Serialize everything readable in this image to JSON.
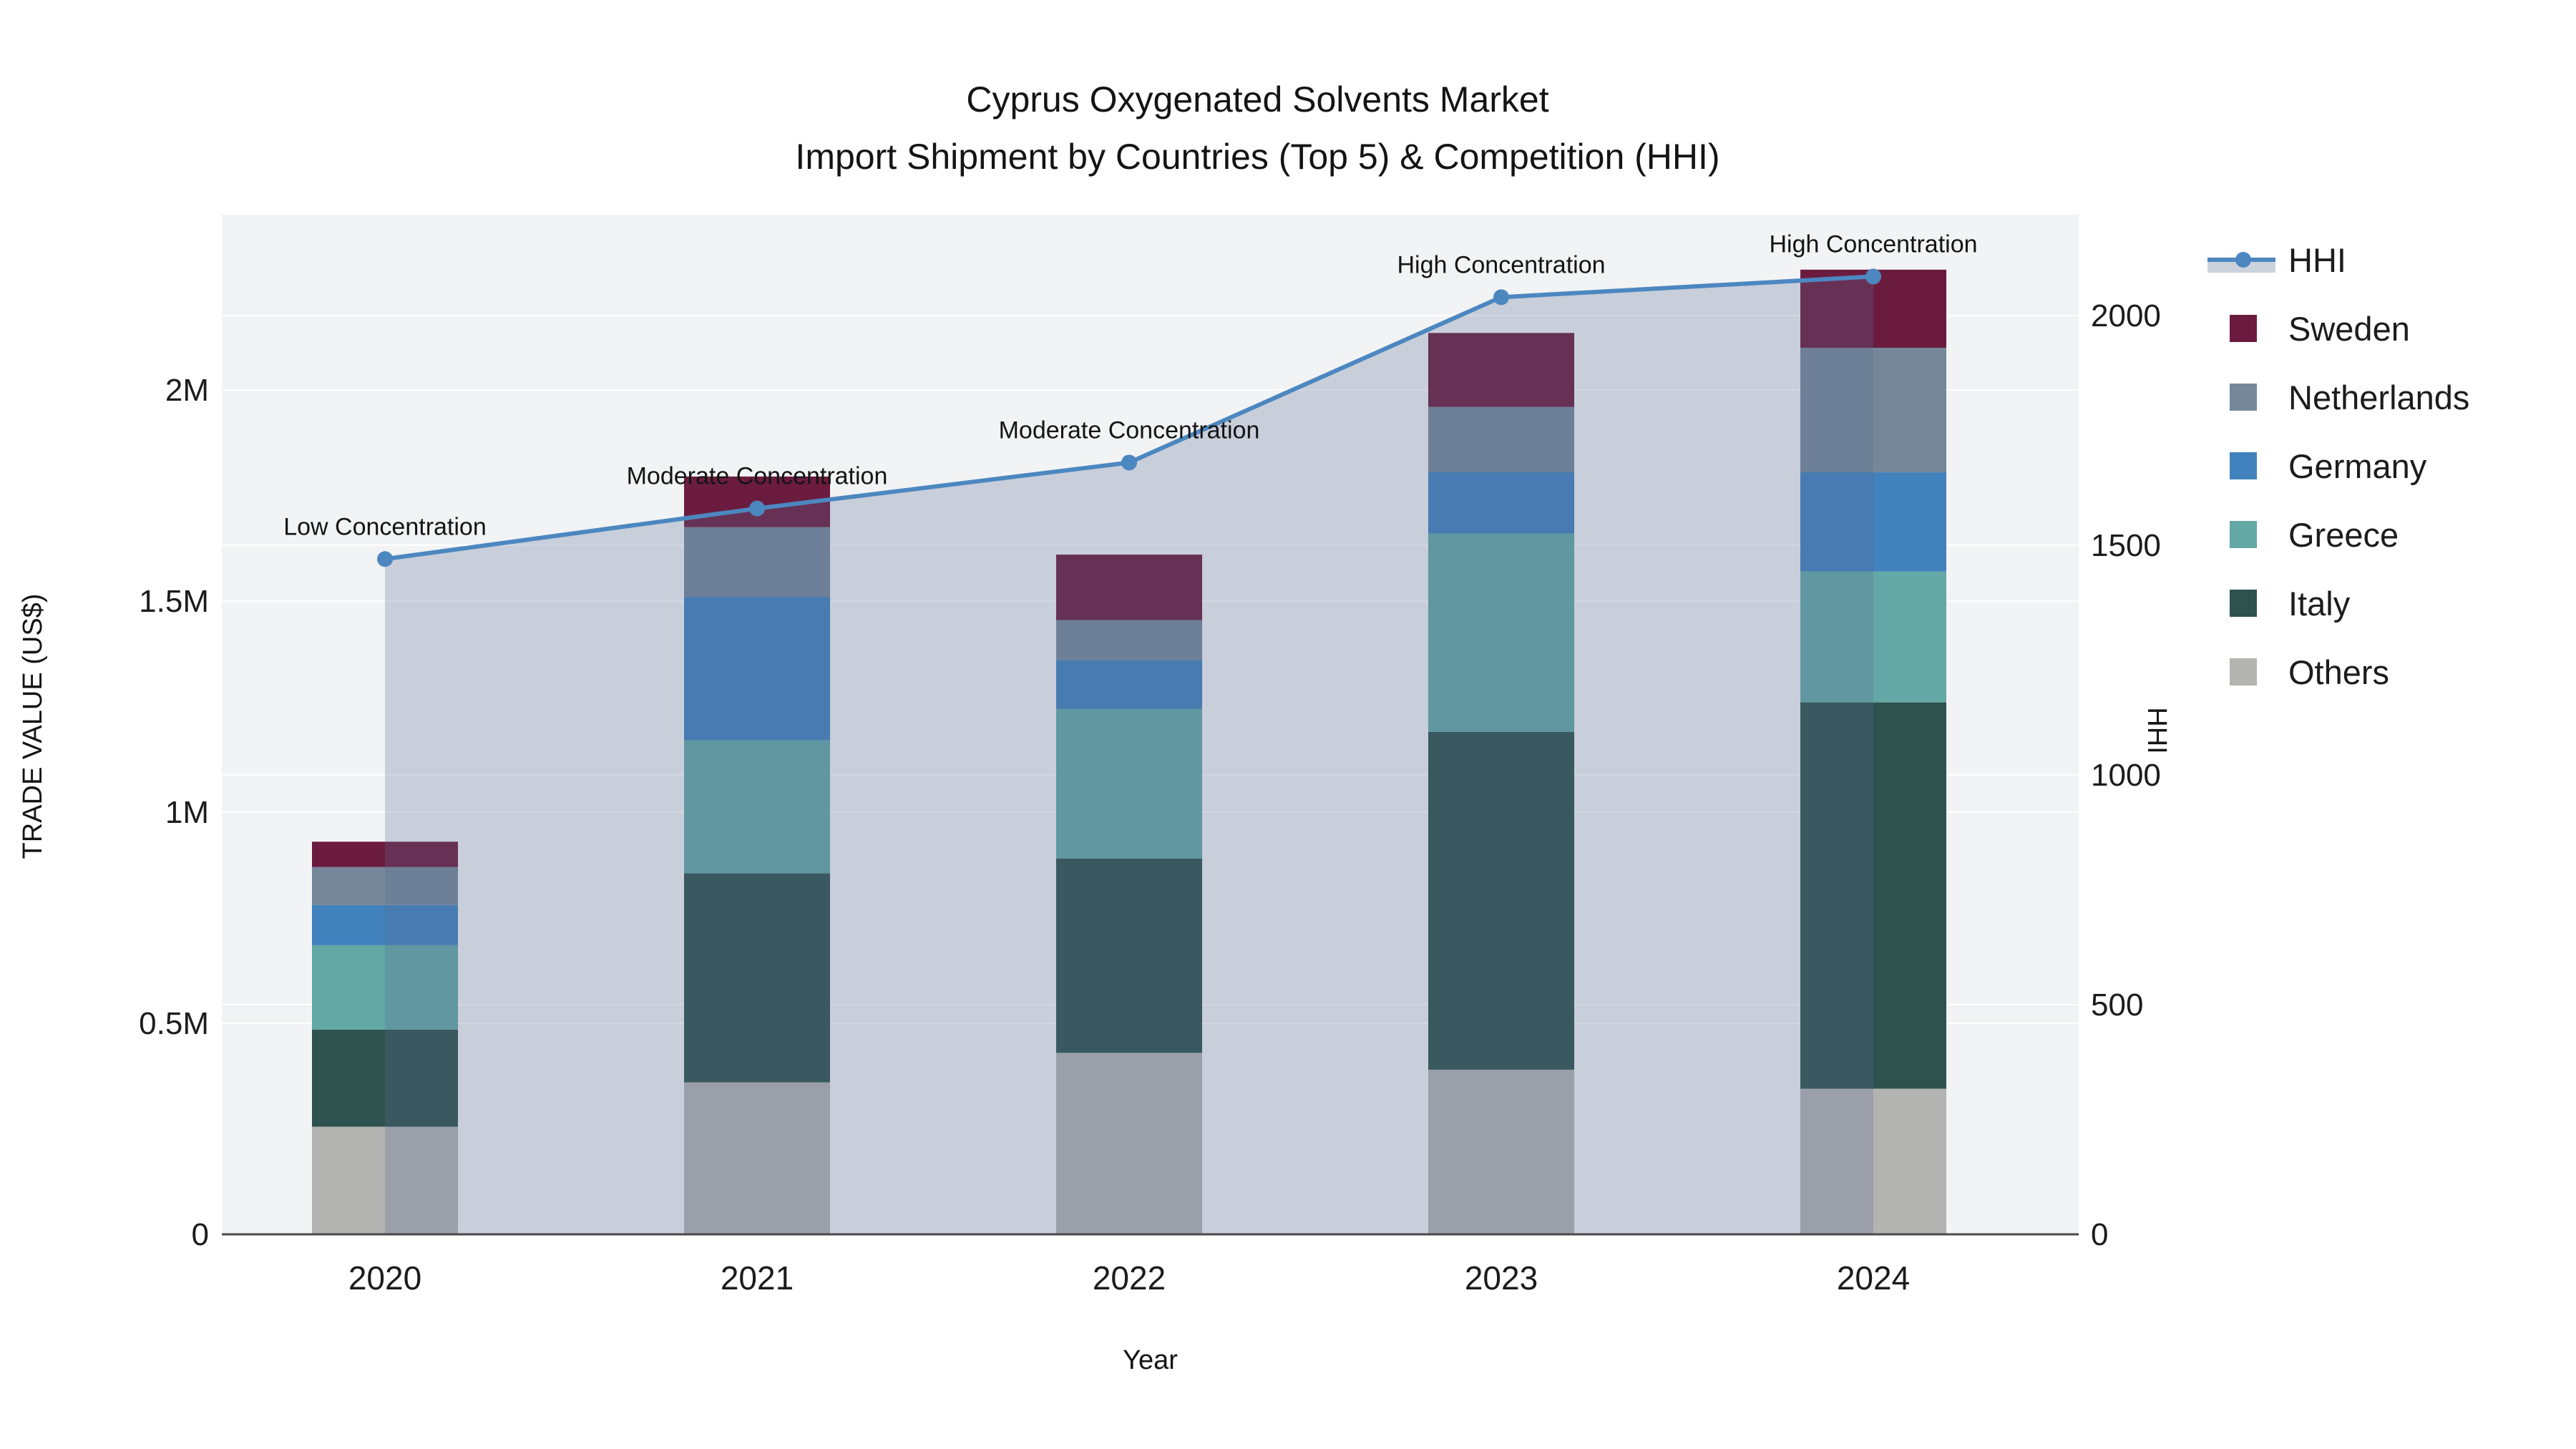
{
  "title": {
    "line1": "Cyprus Oxygenated Solvents Market",
    "line2": "Import Shipment by Countries (Top 5) & Competition (HHI)"
  },
  "axes": {
    "x_title": "Year",
    "y_left_title": "TRADE VALUE (US$)",
    "y_right_title": "HHI",
    "y_left_ticks": [
      {
        "label": "0",
        "value": 0
      },
      {
        "label": "0.5M",
        "value": 500000
      },
      {
        "label": "1M",
        "value": 1000000
      },
      {
        "label": "1.5M",
        "value": 1500000
      },
      {
        "label": "2M",
        "value": 2000000
      }
    ],
    "y_right_ticks": [
      {
        "label": "0",
        "value": 0
      },
      {
        "label": "500",
        "value": 500
      },
      {
        "label": "1000",
        "value": 1000
      },
      {
        "label": "1500",
        "value": 1500
      },
      {
        "label": "2000",
        "value": 2000
      }
    ]
  },
  "legend": {
    "items": [
      {
        "label": "HHI",
        "type": "line",
        "color": "#4c87c0"
      },
      {
        "label": "Sweden",
        "type": "swatch",
        "color": "#6b1c3e"
      },
      {
        "label": "Netherlands",
        "type": "swatch",
        "color": "#76879a"
      },
      {
        "label": "Germany",
        "type": "swatch",
        "color": "#4181bc"
      },
      {
        "label": "Greece",
        "type": "swatch",
        "color": "#63a8a5"
      },
      {
        "label": "Italy",
        "type": "swatch",
        "color": "#2e524e"
      },
      {
        "label": "Others",
        "type": "swatch",
        "color": "#b3b3b1"
      }
    ]
  },
  "chart_data": {
    "type": "combo: stacked bar (left axis) + line with area fill (right axis)",
    "categories": [
      "2020",
      "2021",
      "2022",
      "2023",
      "2024"
    ],
    "stack_order_bottom_to_top": [
      "Others",
      "Italy",
      "Greece",
      "Germany",
      "Netherlands",
      "Sweden"
    ],
    "series": [
      {
        "name": "Others",
        "color": "#b3b3b1",
        "values": [
          255000,
          360000,
          430000,
          390000,
          345000
        ]
      },
      {
        "name": "Italy",
        "color": "#2e524e",
        "values": [
          230000,
          495000,
          460000,
          800000,
          915000
        ]
      },
      {
        "name": "Greece",
        "color": "#63a8a5",
        "values": [
          200000,
          315000,
          355000,
          470000,
          310000
        ]
      },
      {
        "name": "Germany",
        "color": "#4181bc",
        "values": [
          95000,
          340000,
          115000,
          145000,
          235000
        ]
      },
      {
        "name": "Netherlands",
        "color": "#76879a",
        "values": [
          90000,
          165000,
          95000,
          155000,
          295000
        ]
      },
      {
        "name": "Sweden",
        "color": "#6b1c3e",
        "values": [
          60000,
          120000,
          155000,
          175000,
          185000
        ]
      }
    ],
    "bar_totals": [
      930000,
      1795000,
      1610000,
      2135000,
      2285000
    ],
    "line_series": {
      "name": "HHI",
      "color": "#4c87c0",
      "values": [
        1470,
        1580,
        1680,
        2040,
        2085
      ]
    },
    "annotations": [
      "Low Concentration",
      "Moderate Concentration",
      "Moderate Concentration",
      "High Concentration",
      "High Concentration"
    ],
    "title": "Cyprus Oxygenated Solvents Market Import Shipment by Countries (Top 5) & Competition (HHI)",
    "xlabel": "Year",
    "ylabel": "TRADE VALUE (US$)",
    "ylabel2": "HHI",
    "ylim_left": [
      0,
      2420000
    ],
    "ylim_right": [
      0,
      2220
    ],
    "grid": true,
    "legend_position": "right",
    "colors": {
      "plot_bg": "#f2f3f4",
      "grid": "#ffffff",
      "axis_line": "#4a4a4a",
      "area_fill": "rgba(88,108,148,0.27)",
      "text": "#1c1c1c"
    }
  }
}
